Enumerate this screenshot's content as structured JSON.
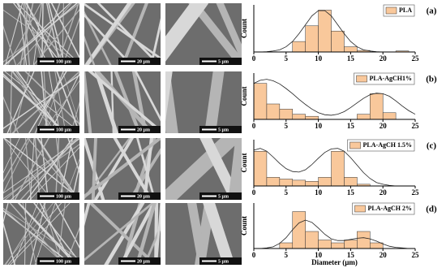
{
  "sem_images": {
    "rows": [
      [
        "100 µm",
        "20 µm",
        "5 µm"
      ],
      [
        "100 µm",
        "20 µm",
        "5 µm"
      ],
      [
        "100 µm",
        "20 µm",
        "5 µm"
      ],
      [
        "100 µm",
        "20 µm",
        "5 µm"
      ]
    ]
  },
  "chart_data": [
    {
      "type": "histogram",
      "panel_label": "(a)",
      "y_label": "Count",
      "bins": [
        0,
        2,
        4,
        6,
        8,
        10,
        12,
        14,
        16,
        18,
        20,
        22,
        24
      ],
      "series": [
        {
          "name": "PLA",
          "color": "#f9c89b",
          "values": [
            0,
            0,
            0,
            2,
            5,
            8,
            4,
            1,
            0.3,
            0,
            0,
            0.2
          ]
        }
      ],
      "curve": {
        "x": [
          0,
          1,
          2,
          3,
          4,
          5,
          6,
          7,
          8,
          9,
          10,
          11,
          12,
          13,
          14,
          15,
          16,
          17,
          18,
          19,
          20,
          21,
          22,
          23,
          24,
          25
        ],
        "y": [
          0,
          0,
          0.05,
          0.2,
          0.4,
          1.0,
          2.0,
          3.5,
          5.2,
          6.9,
          7.9,
          7.9,
          6.9,
          5.2,
          3.5,
          2.0,
          1.0,
          0.4,
          0.2,
          0.05,
          0,
          0,
          0,
          0,
          0,
          0
        ]
      },
      "xlim": [
        0,
        25
      ],
      "xticks": [
        0,
        5,
        10,
        15,
        20,
        25
      ],
      "ylim": [
        0,
        9
      ]
    },
    {
      "type": "histogram",
      "panel_label": "(b)",
      "y_label": "Count",
      "bins": [
        0,
        2,
        4,
        6,
        8,
        10,
        12,
        14,
        16,
        18,
        20,
        22,
        24
      ],
      "series": [
        {
          "name": "PLA-AgCH1%",
          "color": "#f9c89b",
          "values": [
            7,
            3,
            2,
            1,
            0.6,
            0,
            0,
            0,
            1,
            5,
            1.3,
            0
          ]
        }
      ],
      "curve": {
        "x": [
          0,
          1,
          2,
          3,
          4,
          5,
          6,
          7,
          8,
          9,
          10,
          11,
          12,
          13,
          14,
          15,
          16,
          17,
          18,
          19,
          20,
          21,
          22,
          23,
          24,
          25
        ],
        "y": [
          7,
          7.6,
          7.8,
          7.5,
          6.9,
          6.0,
          5.0,
          3.9,
          2.9,
          2.0,
          1.3,
          0.9,
          0.8,
          1.0,
          1.5,
          2.3,
          3.2,
          4.1,
          4.8,
          5.1,
          5.0,
          4.5,
          3.6,
          2.6,
          1.7,
          1.0
        ]
      },
      "xlim": [
        0,
        25
      ],
      "xticks": [
        0,
        5,
        10,
        15,
        20,
        25
      ],
      "ylim": [
        0,
        9
      ]
    },
    {
      "type": "histogram",
      "panel_label": "(c)",
      "y_label": "Count",
      "bins": [
        0,
        2,
        4,
        6,
        8,
        10,
        12,
        14,
        16,
        18,
        20,
        22,
        24
      ],
      "series": [
        {
          "name": "PLA-AgCH 1.5%",
          "color": "#f9c89b",
          "values": [
            6,
            1.5,
            1.2,
            1,
            0.8,
            1.5,
            6,
            1.5,
            0.3,
            0,
            0,
            0
          ]
        }
      ],
      "curve": {
        "x": [
          0,
          1,
          2,
          3,
          4,
          5,
          6,
          7,
          8,
          9,
          10,
          11,
          12,
          13,
          14,
          15,
          16,
          17,
          18,
          19,
          20,
          21,
          22,
          23,
          24,
          25
        ],
        "y": [
          6.2,
          6.5,
          6.0,
          5.0,
          3.9,
          3.0,
          2.5,
          2.4,
          2.8,
          3.7,
          4.8,
          5.8,
          6.4,
          6.5,
          6.0,
          4.9,
          3.6,
          2.3,
          1.3,
          0.6,
          0.3,
          0.1,
          0,
          0,
          0,
          0
        ]
      },
      "xlim": [
        0,
        25
      ],
      "xticks": [
        0,
        5,
        10,
        15,
        20,
        25
      ],
      "ylim": [
        0,
        8
      ]
    },
    {
      "type": "histogram",
      "panel_label": "(d)",
      "y_label": "Count",
      "x_label": "Diameter (µm)",
      "bins": [
        0,
        2,
        4,
        6,
        8,
        10,
        12,
        14,
        16,
        18,
        20,
        22,
        24
      ],
      "series": [
        {
          "name": "PLA-AgCH 2%",
          "color": "#f9c89b",
          "values": [
            0,
            0,
            1,
            6.5,
            3,
            1.5,
            1,
            1.5,
            3,
            1,
            0,
            0
          ]
        }
      ],
      "curve": {
        "x": [
          0,
          1,
          2,
          3,
          4,
          5,
          6,
          7,
          8,
          9,
          10,
          11,
          12,
          13,
          14,
          15,
          16,
          17,
          18,
          19,
          20,
          21,
          22,
          23,
          24,
          25
        ],
        "y": [
          0,
          0,
          0.1,
          0.3,
          0.9,
          1.9,
          3.3,
          4.5,
          5.0,
          4.6,
          3.6,
          2.5,
          1.7,
          1.4,
          1.4,
          1.6,
          1.8,
          1.9,
          1.7,
          1.3,
          0.8,
          0.4,
          0.2,
          0.1,
          0,
          0
        ]
      },
      "xlim": [
        0,
        25
      ],
      "xticks": [
        0,
        5,
        10,
        15,
        20,
        25
      ],
      "ylim": [
        0,
        8
      ]
    }
  ]
}
